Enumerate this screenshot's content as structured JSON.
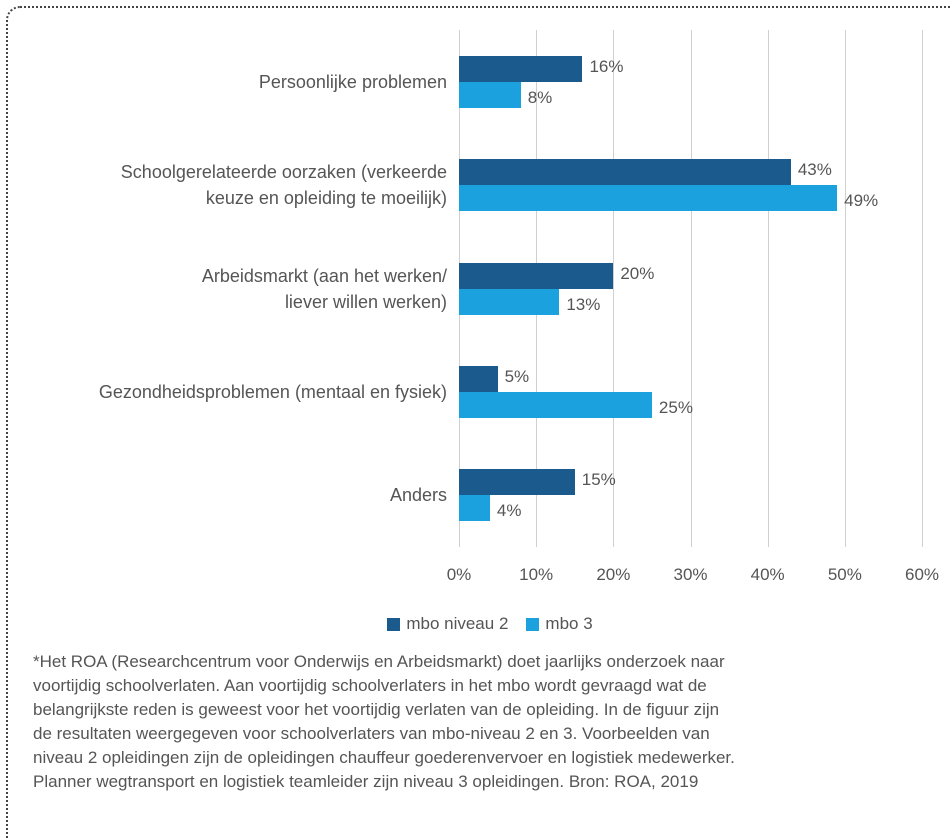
{
  "chart_data": {
    "type": "bar",
    "orientation": "horizontal",
    "categories": [
      "Persoonlijke problemen",
      "Schoolgerelateerde oorzaken (verkeerde\nkeuze en opleiding te moeilijk)",
      "Arbeidsmarkt (aan het werken/\nliever willen werken)",
      "Gezondheidsproblemen (mentaal en fysiek)",
      "Anders"
    ],
    "series": [
      {
        "name": "mbo niveau 2",
        "color": "#1b5a8c",
        "values": [
          16,
          43,
          20,
          5,
          15
        ],
        "value_labels": [
          "16%",
          "43%",
          "20%",
          "5%",
          "15%"
        ]
      },
      {
        "name": "mbo 3",
        "color": "#1ba1dd",
        "values": [
          8,
          49,
          13,
          25,
          4
        ],
        "value_labels": [
          "8%",
          "49%",
          "13%",
          "25%",
          "4%"
        ]
      }
    ],
    "xlim": [
      0,
      60
    ],
    "xticks": [
      {
        "value": 0,
        "label": "0%"
      },
      {
        "value": 10,
        "label": "10%"
      },
      {
        "value": 20,
        "label": "20%"
      },
      {
        "value": 30,
        "label": "30%"
      },
      {
        "value": 40,
        "label": "40%"
      },
      {
        "value": 50,
        "label": "50%"
      },
      {
        "value": 60,
        "label": "60%"
      }
    ],
    "grid": true,
    "legend": "bottom",
    "note": "*Het ROA (Researchcentrum voor Onderwijs en Arbeidsmarkt) doet jaarlijks onderzoek naar\nvoortijdig schoolverlaten. Aan voortijdig schoolverlaters in het mbo wordt gevraagd wat de\nbelangrijkste reden is geweest voor het voortijdig verlaten van de opleiding. In de figuur zijn\nde resultaten weergegeven voor schoolverlaters van mbo-niveau 2 en 3. Voorbeelden van\nniveau 2 opleidingen zijn de opleidingen chauffeur goederenvervoer en logistiek medewerker.\nPlanner wegtransport en logistiek teamleider zijn niveau 3 opleidingen. Bron: ROA, 2019"
  }
}
